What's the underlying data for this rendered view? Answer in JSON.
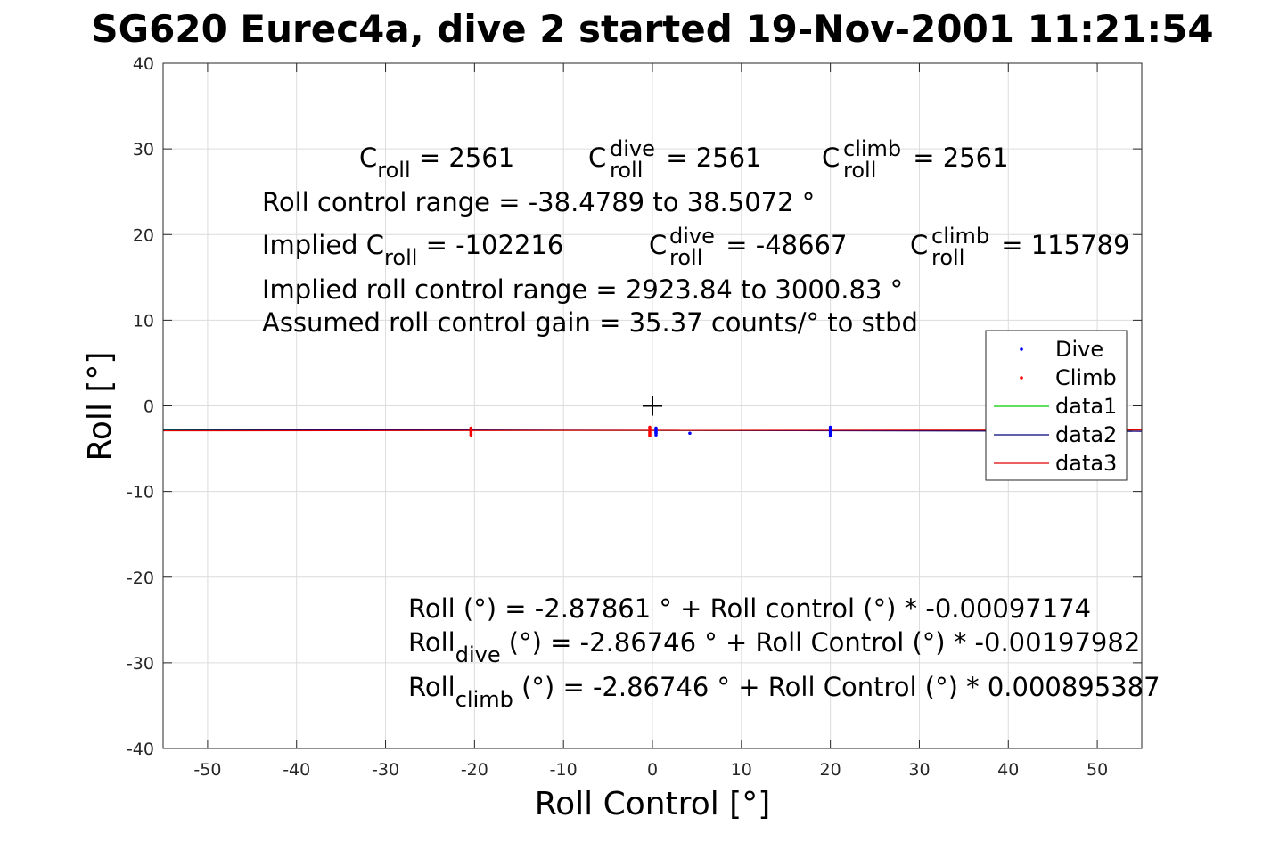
{
  "chart_data": {
    "type": "scatter",
    "title": "SG620 Eurec4a, dive 2 started 19-Nov-2001 11:21:54",
    "xlabel": "Roll Control [°]",
    "ylabel": "Roll [°]",
    "xlim": [
      -55,
      55
    ],
    "ylim": [
      -40,
      40
    ],
    "x_ticks": [
      -50,
      -40,
      -30,
      -20,
      -10,
      0,
      10,
      20,
      30,
      40,
      50
    ],
    "y_ticks": [
      -40,
      -30,
      -20,
      -10,
      0,
      10,
      20,
      30,
      40
    ],
    "grid": true,
    "legend_position": "right",
    "series": [
      {
        "name": "Dive",
        "kind": "points",
        "color": "#0000ff",
        "x": [
          0.4,
          0.4,
          0.4,
          0.4,
          0.4,
          0.4,
          4.2,
          20.0,
          20.0,
          20.0,
          20.0,
          20.0,
          20.0
        ],
        "y": [
          -2.6,
          -2.8,
          -3.0,
          -3.2,
          -3.4,
          -3.1,
          -3.2,
          -2.5,
          -2.7,
          -2.9,
          -3.1,
          -3.3,
          -3.5
        ]
      },
      {
        "name": "Climb",
        "kind": "points",
        "color": "#ff0000",
        "x": [
          -20.4,
          -20.4,
          -20.4,
          -20.4,
          -20.4,
          -0.3,
          -0.3,
          -0.3,
          -0.3,
          -0.3,
          -0.3
        ],
        "y": [
          -2.6,
          -2.8,
          -3.0,
          -3.2,
          -3.4,
          -2.5,
          -2.7,
          -2.9,
          -3.1,
          -3.3,
          -3.5
        ]
      },
      {
        "name": "data1",
        "kind": "line",
        "color": "#00cc00",
        "x": [
          -55,
          55
        ],
        "y": [
          -2.826,
          -2.931
        ]
      },
      {
        "name": "data2",
        "kind": "line",
        "color": "#00007f",
        "x": [
          -55,
          55
        ],
        "y": [
          -2.758,
          -2.976
        ]
      },
      {
        "name": "data3",
        "kind": "line",
        "color": "#e00000",
        "x": [
          -55,
          55
        ],
        "y": [
          -2.917,
          -2.818
        ]
      }
    ],
    "center_marker": {
      "symbol": "+",
      "x": 0,
      "y": 0
    },
    "annotations": {
      "c_roll": "C",
      "c_roll_sub": "roll",
      "c_roll_val": " = 2561",
      "c_dive": "C",
      "c_dive_sup": "dive",
      "c_dive_sub": "roll",
      "c_dive_val": " = 2561",
      "c_climb": "C",
      "c_climb_sup": "climb",
      "c_climb_sub": "roll",
      "c_climb_val": " = 2561",
      "range": "Roll control range = -38.4789 to 38.5072 °",
      "implied_prefix": "Implied C",
      "implied_sub": "roll",
      "implied_val": " = -102216",
      "implied_dive": "C",
      "implied_dive_sup": "dive",
      "implied_dive_sub": "roll",
      "implied_dive_val": " = -48667",
      "implied_climb": "C",
      "implied_climb_sup": "climb",
      "implied_climb_sub": "roll",
      "implied_climb_val": " = 115789",
      "implied_range": "Implied roll control range = 2923.84 to 3000.83 °",
      "gain": "Assumed roll control gain = 35.37 counts/° to stbd",
      "fit": "Roll (°) = -2.87861 ° + Roll control (°) * -0.00097174",
      "fit_dive_prefix": "Roll",
      "fit_dive_sub": "dive",
      "fit_dive_rest": " (°) = -2.86746 ° + Roll Control (°) * -0.00197982",
      "fit_climb_prefix": "Roll",
      "fit_climb_sub": "climb",
      "fit_climb_rest": " (°) = -2.86746 ° + Roll Control (°) * 0.000895387"
    }
  }
}
